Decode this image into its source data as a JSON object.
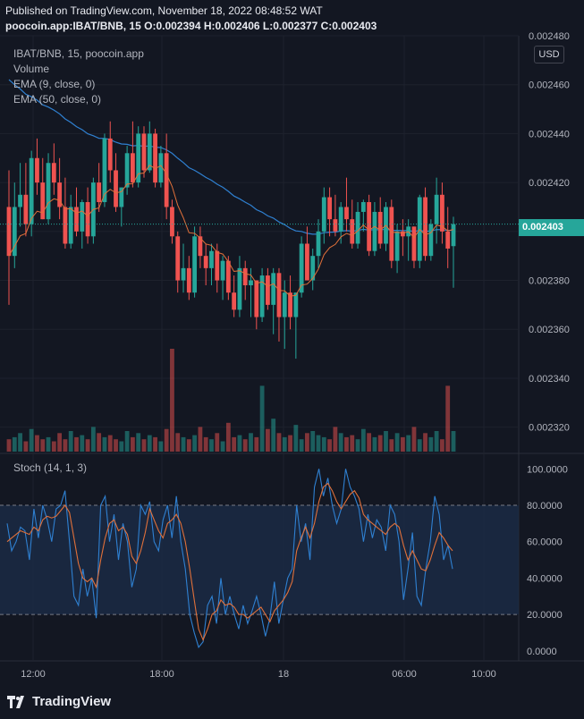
{
  "header": {
    "published": "Published on TradingView.com, November 18, 2022 08:48:52 WAT",
    "symbol_line": "poocoin.app:IBAT/BNB, 15  O:0.002394  H:0.002406  L:0.002377  C:0.002403"
  },
  "legend": {
    "title": "IBAT/BNB, 15, poocoin.app",
    "volume": "Volume",
    "ema9": "EMA (9, close, 0)",
    "ema50": "EMA (50, close, 0)",
    "stoch": "Stoch (14, 1, 3)"
  },
  "currency_button": "USD",
  "last_price_tag": "0.002403",
  "footer_logo": "TradingView",
  "colors": {
    "background": "#131722",
    "up": "#26a69a",
    "down": "#ef5350",
    "ema9": "#e0703a",
    "ema50": "#2f80d1",
    "stoch_k": "#2f80d1",
    "stoch_d": "#e0703a",
    "stoch_band": "#1b2a44"
  },
  "chart_data": [
    {
      "type": "candlestick",
      "name": "IBAT/BNB, 15",
      "ylim": [
        0.00231,
        0.00248
      ],
      "y_ticks": [
        "0.002320",
        "0.002340",
        "0.002360",
        "0.002380",
        "0.002400",
        "0.002420",
        "0.002440",
        "0.002460",
        "0.002480"
      ],
      "x_ticks": [
        "12:00",
        "18:00",
        "18",
        "06:00",
        "10:00"
      ],
      "ohlc": [
        [
          0.00241,
          0.002425,
          0.00237,
          0.00239
        ],
        [
          0.00239,
          0.00242,
          0.002385,
          0.00241
        ],
        [
          0.00241,
          0.002428,
          0.002402,
          0.002415
        ],
        [
          0.002415,
          0.002428,
          0.002398,
          0.002403
        ],
        [
          0.002403,
          0.002433,
          0.002398,
          0.00243
        ],
        [
          0.00243,
          0.002438,
          0.002415,
          0.00242
        ],
        [
          0.00242,
          0.00243,
          0.002405,
          0.002405
        ],
        [
          0.002405,
          0.002432,
          0.002403,
          0.002428
        ],
        [
          0.002428,
          0.002436,
          0.002415,
          0.00242
        ],
        [
          0.00242,
          0.00243,
          0.002405,
          0.00241
        ],
        [
          0.00241,
          0.002422,
          0.002393,
          0.002395
        ],
        [
          0.002395,
          0.002415,
          0.002393,
          0.00241
        ],
        [
          0.00241,
          0.002418,
          0.002398,
          0.0024
        ],
        [
          0.0024,
          0.002413,
          0.002393,
          0.002412
        ],
        [
          0.002412,
          0.002418,
          0.002395,
          0.002398
        ],
        [
          0.002398,
          0.002422,
          0.002395,
          0.00242
        ],
        [
          0.00242,
          0.002428,
          0.002408,
          0.002412
        ],
        [
          0.002412,
          0.00244,
          0.00241,
          0.002438
        ],
        [
          0.002438,
          0.002445,
          0.00242,
          0.002425
        ],
        [
          0.002425,
          0.002432,
          0.002408,
          0.00241
        ],
        [
          0.00241,
          0.002418,
          0.002402,
          0.002418
        ],
        [
          0.002418,
          0.002435,
          0.002415,
          0.002432
        ],
        [
          0.002432,
          0.002445,
          0.002418,
          0.00242
        ],
        [
          0.00242,
          0.002443,
          0.002418,
          0.00244
        ],
        [
          0.00244,
          0.002443,
          0.002422,
          0.002425
        ],
        [
          0.002425,
          0.002445,
          0.002424,
          0.00244
        ],
        [
          0.00244,
          0.002442,
          0.002418,
          0.00242
        ],
        [
          0.00242,
          0.002435,
          0.002418,
          0.002432
        ],
        [
          0.002432,
          0.00244,
          0.002405,
          0.00241
        ],
        [
          0.00241,
          0.002413,
          0.002395,
          0.002398
        ],
        [
          0.002398,
          0.0024,
          0.002375,
          0.00238
        ],
        [
          0.00238,
          0.002395,
          0.002375,
          0.002385
        ],
        [
          0.002385,
          0.00239,
          0.002372,
          0.002375
        ],
        [
          0.002375,
          0.002402,
          0.002373,
          0.002398
        ],
        [
          0.002398,
          0.002402,
          0.002385,
          0.00239
        ],
        [
          0.00239,
          0.002395,
          0.002378,
          0.002385
        ],
        [
          0.002385,
          0.002395,
          0.002378,
          0.002392
        ],
        [
          0.002392,
          0.002395,
          0.002375,
          0.00238
        ],
        [
          0.00238,
          0.00239,
          0.002372,
          0.002388
        ],
        [
          0.002388,
          0.00239,
          0.002372,
          0.002375
        ],
        [
          0.002375,
          0.002382,
          0.002365,
          0.002368
        ],
        [
          0.002368,
          0.00239,
          0.002365,
          0.002385
        ],
        [
          0.002385,
          0.002388,
          0.002372,
          0.002378
        ],
        [
          0.002378,
          0.002385,
          0.002365,
          0.00238
        ],
        [
          0.00238,
          0.00238,
          0.00236,
          0.002365
        ],
        [
          0.002365,
          0.002385,
          0.002363,
          0.002382
        ],
        [
          0.002382,
          0.002385,
          0.002368,
          0.00237
        ],
        [
          0.00237,
          0.002385,
          0.002358,
          0.002383
        ],
        [
          0.002383,
          0.002385,
          0.002355,
          0.002365
        ],
        [
          0.002365,
          0.00238,
          0.002352,
          0.002375
        ],
        [
          0.002375,
          0.002382,
          0.00236,
          0.002365
        ],
        [
          0.002365,
          0.002375,
          0.002348,
          0.002375
        ],
        [
          0.002375,
          0.002398,
          0.002373,
          0.002395
        ],
        [
          0.002395,
          0.002402,
          0.00238,
          0.00238
        ],
        [
          0.00238,
          0.002393,
          0.002376,
          0.00239
        ],
        [
          0.00239,
          0.002405,
          0.002385,
          0.0024
        ],
        [
          0.0024,
          0.002418,
          0.002395,
          0.002414
        ],
        [
          0.002414,
          0.002418,
          0.002398,
          0.002405
        ],
        [
          0.002405,
          0.002415,
          0.002398,
          0.0024
        ],
        [
          0.0024,
          0.002412,
          0.002395,
          0.00241
        ],
        [
          0.00241,
          0.002422,
          0.0024,
          0.002405
        ],
        [
          0.002405,
          0.002413,
          0.002393,
          0.002395
        ],
        [
          0.002395,
          0.002412,
          0.002393,
          0.002408
        ],
        [
          0.002408,
          0.002413,
          0.0024,
          0.002412
        ],
        [
          0.002412,
          0.002415,
          0.00239,
          0.002392
        ],
        [
          0.002392,
          0.002412,
          0.00239,
          0.002408
        ],
        [
          0.002408,
          0.002414,
          0.002393,
          0.002395
        ],
        [
          0.002395,
          0.002412,
          0.002392,
          0.00241
        ],
        [
          0.00241,
          0.002413,
          0.002385,
          0.002388
        ],
        [
          0.002388,
          0.002403,
          0.002383,
          0.0024
        ],
        [
          0.0024,
          0.002405,
          0.00239,
          0.002398
        ],
        [
          0.002398,
          0.002405,
          0.002388,
          0.002402
        ],
        [
          0.002402,
          0.002402,
          0.002385,
          0.002388
        ],
        [
          0.002388,
          0.002415,
          0.002385,
          0.002414
        ],
        [
          0.002414,
          0.002418,
          0.002388,
          0.00239
        ],
        [
          0.00239,
          0.002405,
          0.002388,
          0.002403
        ],
        [
          0.002403,
          0.002422,
          0.002395,
          0.002415
        ],
        [
          0.002415,
          0.00242,
          0.002395,
          0.0024
        ],
        [
          0.0024,
          0.00241,
          0.002385,
          0.002393
        ],
        [
          0.002394,
          0.002406,
          0.002377,
          0.002403
        ]
      ],
      "volume": [
        6,
        7,
        9,
        5,
        11,
        8,
        6,
        7,
        5,
        9,
        6,
        10,
        7,
        8,
        6,
        12,
        9,
        7,
        8,
        6,
        5,
        10,
        7,
        9,
        6,
        8,
        7,
        5,
        11,
        50,
        9,
        7,
        6,
        8,
        12,
        7,
        6,
        9,
        5,
        14,
        7,
        8,
        6,
        9,
        7,
        32,
        11,
        16,
        9,
        7,
        8,
        13,
        6,
        9,
        10,
        8,
        7,
        6,
        12,
        9,
        7,
        8,
        6,
        11,
        9,
        7,
        8,
        10,
        6,
        9,
        7,
        8,
        12,
        6,
        9,
        7,
        10,
        6,
        32,
        10
      ],
      "ema9_last": 0.0024,
      "ema50_last": 0.002399
    },
    {
      "type": "line",
      "name": "Stoch (14, 1, 3)",
      "ylim": [
        -5,
        108
      ],
      "y_ticks": [
        "0.0000",
        "20.0000",
        "40.0000",
        "60.0000",
        "80.0000",
        "100.0000"
      ],
      "bands": [
        20,
        80
      ],
      "series": [
        {
          "name": "%K",
          "values": [
            70,
            55,
            60,
            68,
            66,
            50,
            78,
            62,
            80,
            72,
            60,
            78,
            80,
            88,
            60,
            30,
            25,
            45,
            30,
            40,
            18,
            80,
            85,
            60,
            75,
            50,
            70,
            60,
            35,
            45,
            80,
            75,
            82,
            60,
            55,
            72,
            80,
            62,
            85,
            60,
            45,
            20,
            10,
            2,
            5,
            25,
            30,
            15,
            40,
            20,
            30,
            20,
            12,
            25,
            15,
            22,
            30,
            20,
            8,
            18,
            38,
            15,
            28,
            40,
            45,
            80,
            60,
            70,
            50,
            90,
            100,
            85,
            95,
            80,
            70,
            78,
            100,
            90,
            85,
            78,
            60,
            75,
            62,
            72,
            68,
            55,
            80,
            75,
            60,
            28,
            45,
            65,
            30,
            25,
            45,
            60,
            85,
            75,
            50,
            58,
            45
          ]
        },
        {
          "name": "%D",
          "values": [
            60,
            62,
            64,
            66,
            65,
            64,
            68,
            66,
            72,
            74,
            73,
            74,
            77,
            80,
            76,
            62,
            48,
            40,
            38,
            40,
            35,
            50,
            62,
            70,
            72,
            66,
            68,
            64,
            52,
            48,
            55,
            65,
            78,
            72,
            66,
            62,
            70,
            72,
            75,
            70,
            60,
            45,
            28,
            12,
            6,
            12,
            20,
            22,
            28,
            25,
            26,
            24,
            20,
            20,
            18,
            20,
            22,
            24,
            20,
            16,
            22,
            25,
            28,
            32,
            38,
            55,
            62,
            68,
            62,
            70,
            82,
            90,
            92,
            88,
            82,
            78,
            82,
            86,
            88,
            84,
            75,
            72,
            70,
            68,
            66,
            64,
            68,
            70,
            68,
            58,
            50,
            55,
            50,
            45,
            44,
            50,
            58,
            65,
            62,
            58,
            55
          ]
        }
      ]
    }
  ]
}
